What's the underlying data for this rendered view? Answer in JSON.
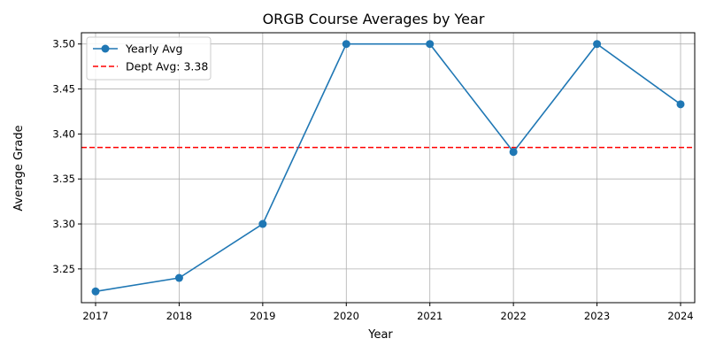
{
  "chart_data": {
    "type": "line",
    "title": "ORGB Course Averages by Year",
    "xlabel": "Year",
    "ylabel": "Average Grade",
    "x": [
      "2017",
      "2018",
      "2019",
      "2020",
      "2021",
      "2022",
      "2023",
      "2024"
    ],
    "series": [
      {
        "name": "Yearly Avg",
        "color": "#1f77b4",
        "marker": "circle",
        "values": [
          3.225,
          3.24,
          3.3,
          3.5,
          3.5,
          3.38,
          3.5,
          3.433
        ]
      }
    ],
    "reference_line": {
      "label": "Dept Avg: 3.38",
      "value": 3.385,
      "color": "#ff0000",
      "style": "dashed"
    },
    "ylim": [
      3.2125,
      3.5125
    ],
    "yticks": [
      "3.25",
      "3.30",
      "3.35",
      "3.40",
      "3.45",
      "3.50"
    ],
    "grid": true,
    "legend_position": "top-left"
  }
}
